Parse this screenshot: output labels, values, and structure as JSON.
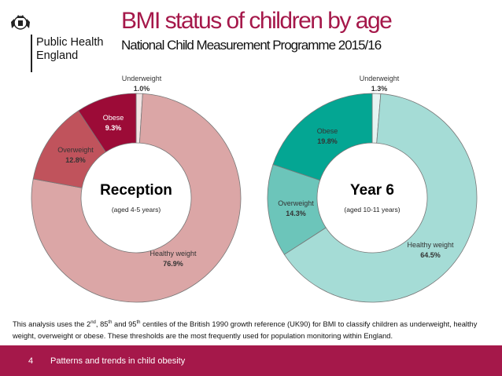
{
  "header": {
    "org_line1": "Public Health",
    "org_line2": "England",
    "title": "BMI status of children by age",
    "subtitle": "National Child Measurement Programme 2015/16"
  },
  "chart_data": [
    {
      "type": "pie",
      "title": "Reception",
      "subtitle": "(aged 4-5 years)",
      "slices": [
        {
          "label": "Underweight",
          "value": 1.0,
          "value_label": "1.0%",
          "color": "#f3e4e4"
        },
        {
          "label": "Healthy weight",
          "value": 76.9,
          "value_label": "76.9%",
          "color": "#dba6a6"
        },
        {
          "label": "Overweight",
          "value": 12.8,
          "value_label": "12.8%",
          "color": "#c0535c"
        },
        {
          "label": "Obese",
          "value": 9.3,
          "value_label": "9.3%",
          "color": "#9c0b37"
        }
      ]
    },
    {
      "type": "pie",
      "title": "Year 6",
      "subtitle": "(aged 10-11 years)",
      "slices": [
        {
          "label": "Underweight",
          "value": 1.3,
          "value_label": "1.3%",
          "color": "#e6f4f2"
        },
        {
          "label": "Healthy weight",
          "value": 64.5,
          "value_label": "64.5%",
          "color": "#a5dcd6"
        },
        {
          "label": "Overweight",
          "value": 14.3,
          "value_label": "14.3%",
          "color": "#6cc5ba"
        },
        {
          "label": "Obese",
          "value": 19.8,
          "value_label": "19.8%",
          "color": "#04a693"
        }
      ]
    }
  ],
  "note": {
    "part1": "This analysis uses the 2",
    "sup1": "nd",
    "part2": ", 85",
    "sup2": "th",
    "part3": " and 95",
    "sup3": "th",
    "part4": " centiles of the British 1990 growth reference (UK90) for BMI to classify children as underweight, healthy weight, overweight or obese. These thresholds are the most frequently used for population monitoring within England."
  },
  "footer": {
    "page_number": "4",
    "text": "Patterns and trends in child obesity"
  },
  "colors": {
    "brand": "#a5184a",
    "label_dark": "#333333",
    "label_light": "#ffffff"
  }
}
